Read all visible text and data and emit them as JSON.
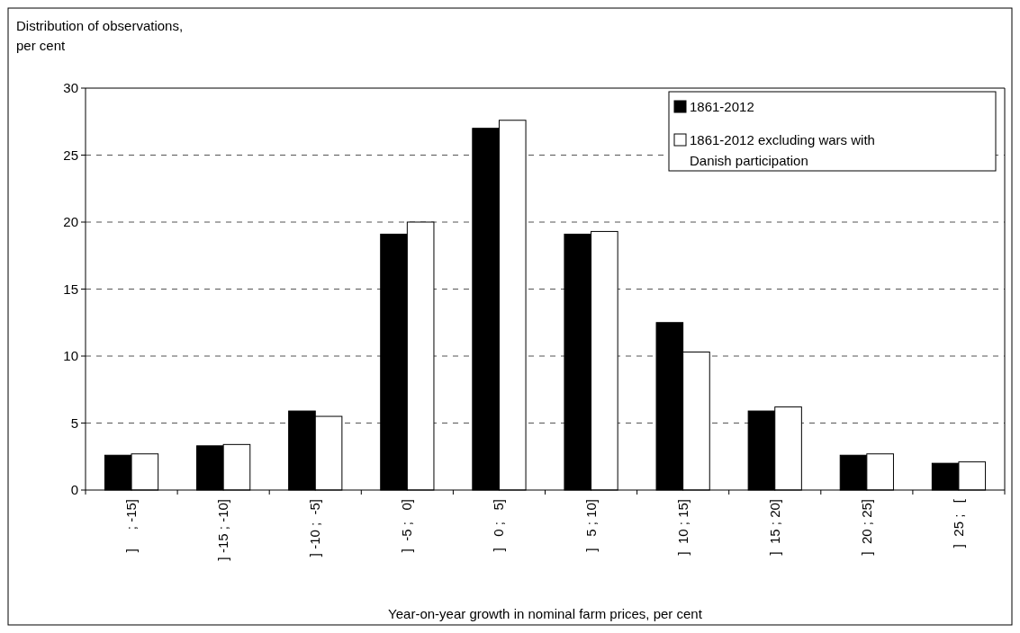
{
  "chart_data": {
    "type": "bar",
    "ylabel": "Distribution of observations,\nper cent",
    "xlabel": "Year-on-year growth in nominal farm prices, per cent",
    "categories": [
      "]     ; -15]",
      "] -15 ; -10]",
      "] -10 ;  -5]",
      "]  -5 ;   0]",
      "]   0 ;   5]",
      "]   5 ; 10]",
      "]  10 ; 15]",
      "]  15 ; 20]",
      "]  20 ; 25]",
      "]  25 ;   ["
    ],
    "series": [
      {
        "name": "1861-2012",
        "color": "#000000",
        "values": [
          2.6,
          3.3,
          5.9,
          19.1,
          27.0,
          19.1,
          12.5,
          5.9,
          2.6,
          2.0
        ]
      },
      {
        "name": "1861-2012 excluding wars with\nDanish participation",
        "color": "#ffffff",
        "values": [
          2.7,
          3.4,
          5.5,
          20.0,
          27.6,
          19.3,
          10.3,
          6.2,
          2.7,
          2.1
        ]
      }
    ],
    "ylim": [
      0,
      30
    ],
    "yticks": [
      0,
      5,
      10,
      15,
      20,
      25,
      30
    ],
    "grid": "y",
    "legend": "top right"
  }
}
